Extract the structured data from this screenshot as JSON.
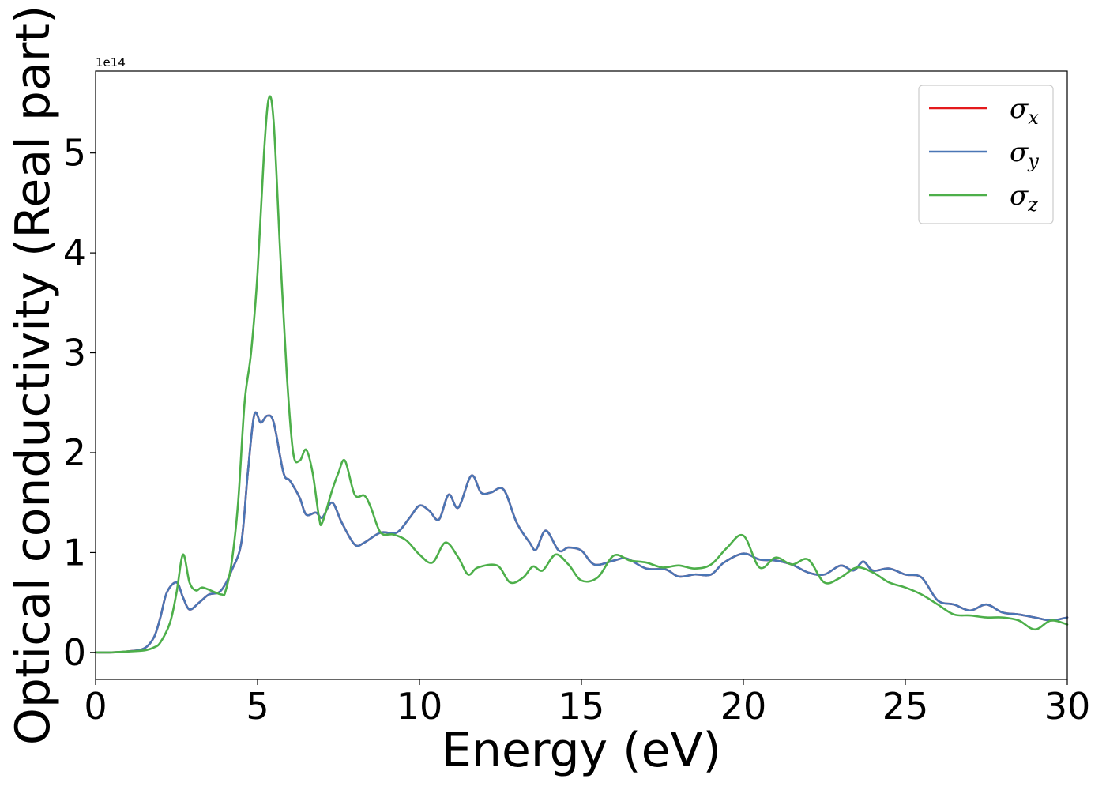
{
  "chart_data": {
    "type": "line",
    "xlabel": "Energy (eV)",
    "ylabel": "Optical conductivity (Real part)",
    "y_offset_text": "1e14",
    "xlim": [
      0,
      30
    ],
    "ylim": [
      -0.27,
      5.82
    ],
    "x_ticks": [
      "0",
      "5",
      "10",
      "15",
      "20",
      "25",
      "30"
    ],
    "y_ticks": [
      "0",
      "1",
      "2",
      "3",
      "4",
      "5"
    ],
    "grid": false,
    "legend_position": "top-right",
    "series": [
      {
        "name": "σ_x",
        "legend_symbol": "σ",
        "legend_subscript": "x",
        "color": "#e41a1c",
        "points": [
          [
            0,
            0
          ],
          [
            0.5,
            0
          ],
          [
            1,
            0.01
          ],
          [
            1.5,
            0.04
          ],
          [
            1.8,
            0.15
          ],
          [
            2,
            0.35
          ],
          [
            2.2,
            0.6
          ],
          [
            2.5,
            0.7
          ],
          [
            2.7,
            0.55
          ],
          [
            2.9,
            0.43
          ],
          [
            3.2,
            0.5
          ],
          [
            3.5,
            0.58
          ],
          [
            3.8,
            0.6
          ],
          [
            4,
            0.68
          ],
          [
            4.2,
            0.82
          ],
          [
            4.5,
            1.1
          ],
          [
            4.7,
            1.8
          ],
          [
            4.9,
            2.38
          ],
          [
            5.1,
            2.3
          ],
          [
            5.3,
            2.37
          ],
          [
            5.5,
            2.3
          ],
          [
            5.8,
            1.8
          ],
          [
            6,
            1.72
          ],
          [
            6.3,
            1.55
          ],
          [
            6.5,
            1.38
          ],
          [
            6.8,
            1.4
          ],
          [
            7,
            1.35
          ],
          [
            7.3,
            1.5
          ],
          [
            7.6,
            1.3
          ],
          [
            8,
            1.08
          ],
          [
            8.3,
            1.1
          ],
          [
            8.8,
            1.2
          ],
          [
            9.3,
            1.2
          ],
          [
            9.7,
            1.35
          ],
          [
            10,
            1.47
          ],
          [
            10.3,
            1.42
          ],
          [
            10.6,
            1.33
          ],
          [
            10.9,
            1.58
          ],
          [
            11.2,
            1.45
          ],
          [
            11.6,
            1.77
          ],
          [
            11.9,
            1.6
          ],
          [
            12.2,
            1.6
          ],
          [
            12.6,
            1.63
          ],
          [
            13,
            1.3
          ],
          [
            13.4,
            1.1
          ],
          [
            13.6,
            1.03
          ],
          [
            13.9,
            1.22
          ],
          [
            14.3,
            1.02
          ],
          [
            14.6,
            1.05
          ],
          [
            15,
            1.02
          ],
          [
            15.4,
            0.88
          ],
          [
            16,
            0.92
          ],
          [
            16.4,
            0.94
          ],
          [
            17,
            0.84
          ],
          [
            17.6,
            0.83
          ],
          [
            18,
            0.76
          ],
          [
            18.5,
            0.78
          ],
          [
            19,
            0.78
          ],
          [
            19.4,
            0.9
          ],
          [
            20,
            0.99
          ],
          [
            20.5,
            0.93
          ],
          [
            21,
            0.92
          ],
          [
            21.5,
            0.88
          ],
          [
            22,
            0.8
          ],
          [
            22.5,
            0.78
          ],
          [
            23,
            0.87
          ],
          [
            23.4,
            0.82
          ],
          [
            23.7,
            0.91
          ],
          [
            24,
            0.82
          ],
          [
            24.5,
            0.84
          ],
          [
            25,
            0.78
          ],
          [
            25.5,
            0.75
          ],
          [
            26,
            0.52
          ],
          [
            26.5,
            0.48
          ],
          [
            27,
            0.42
          ],
          [
            27.5,
            0.48
          ],
          [
            28,
            0.4
          ],
          [
            28.5,
            0.38
          ],
          [
            29,
            0.35
          ],
          [
            29.5,
            0.32
          ],
          [
            30,
            0.35
          ]
        ]
      },
      {
        "name": "σ_y",
        "legend_symbol": "σ",
        "legend_subscript": "y",
        "color": "#4a76b5",
        "points": [
          [
            0,
            0
          ],
          [
            0.5,
            0
          ],
          [
            1,
            0.01
          ],
          [
            1.5,
            0.04
          ],
          [
            1.8,
            0.15
          ],
          [
            2,
            0.35
          ],
          [
            2.2,
            0.6
          ],
          [
            2.5,
            0.7
          ],
          [
            2.7,
            0.55
          ],
          [
            2.9,
            0.43
          ],
          [
            3.2,
            0.5
          ],
          [
            3.5,
            0.58
          ],
          [
            3.8,
            0.6
          ],
          [
            4,
            0.68
          ],
          [
            4.2,
            0.82
          ],
          [
            4.5,
            1.1
          ],
          [
            4.7,
            1.8
          ],
          [
            4.9,
            2.38
          ],
          [
            5.1,
            2.3
          ],
          [
            5.3,
            2.37
          ],
          [
            5.5,
            2.3
          ],
          [
            5.8,
            1.8
          ],
          [
            6,
            1.72
          ],
          [
            6.3,
            1.55
          ],
          [
            6.5,
            1.38
          ],
          [
            6.8,
            1.4
          ],
          [
            7,
            1.35
          ],
          [
            7.3,
            1.5
          ],
          [
            7.6,
            1.3
          ],
          [
            8,
            1.08
          ],
          [
            8.3,
            1.1
          ],
          [
            8.8,
            1.2
          ],
          [
            9.3,
            1.2
          ],
          [
            9.7,
            1.35
          ],
          [
            10,
            1.47
          ],
          [
            10.3,
            1.42
          ],
          [
            10.6,
            1.33
          ],
          [
            10.9,
            1.58
          ],
          [
            11.2,
            1.45
          ],
          [
            11.6,
            1.77
          ],
          [
            11.9,
            1.6
          ],
          [
            12.2,
            1.6
          ],
          [
            12.6,
            1.63
          ],
          [
            13,
            1.3
          ],
          [
            13.4,
            1.1
          ],
          [
            13.6,
            1.03
          ],
          [
            13.9,
            1.22
          ],
          [
            14.3,
            1.02
          ],
          [
            14.6,
            1.05
          ],
          [
            15,
            1.02
          ],
          [
            15.4,
            0.88
          ],
          [
            16,
            0.92
          ],
          [
            16.4,
            0.94
          ],
          [
            17,
            0.84
          ],
          [
            17.6,
            0.83
          ],
          [
            18,
            0.76
          ],
          [
            18.5,
            0.78
          ],
          [
            19,
            0.78
          ],
          [
            19.4,
            0.9
          ],
          [
            20,
            0.99
          ],
          [
            20.5,
            0.93
          ],
          [
            21,
            0.92
          ],
          [
            21.5,
            0.88
          ],
          [
            22,
            0.8
          ],
          [
            22.5,
            0.78
          ],
          [
            23,
            0.87
          ],
          [
            23.4,
            0.82
          ],
          [
            23.7,
            0.91
          ],
          [
            24,
            0.82
          ],
          [
            24.5,
            0.84
          ],
          [
            25,
            0.78
          ],
          [
            25.5,
            0.75
          ],
          [
            26,
            0.52
          ],
          [
            26.5,
            0.48
          ],
          [
            27,
            0.42
          ],
          [
            27.5,
            0.48
          ],
          [
            28,
            0.4
          ],
          [
            28.5,
            0.38
          ],
          [
            29,
            0.35
          ],
          [
            29.5,
            0.32
          ],
          [
            30,
            0.35
          ]
        ]
      },
      {
        "name": "σ_z",
        "legend_symbol": "σ",
        "legend_subscript": "z",
        "color": "#4daf4a",
        "points": [
          [
            0,
            0
          ],
          [
            0.5,
            0
          ],
          [
            1,
            0.01
          ],
          [
            1.5,
            0.02
          ],
          [
            1.8,
            0.05
          ],
          [
            2,
            0.1
          ],
          [
            2.3,
            0.3
          ],
          [
            2.5,
            0.6
          ],
          [
            2.7,
            0.98
          ],
          [
            2.9,
            0.7
          ],
          [
            3.1,
            0.62
          ],
          [
            3.3,
            0.65
          ],
          [
            3.7,
            0.6
          ],
          [
            3.9,
            0.58
          ],
          [
            4,
            0.6
          ],
          [
            4.2,
            0.9
          ],
          [
            4.4,
            1.5
          ],
          [
            4.6,
            2.5
          ],
          [
            4.8,
            3.0
          ],
          [
            5,
            3.8
          ],
          [
            5.2,
            5.0
          ],
          [
            5.35,
            5.55
          ],
          [
            5.5,
            5.3
          ],
          [
            5.7,
            4.0
          ],
          [
            5.9,
            2.8
          ],
          [
            6.1,
            2.0
          ],
          [
            6.3,
            1.92
          ],
          [
            6.5,
            2.03
          ],
          [
            6.7,
            1.8
          ],
          [
            6.9,
            1.35
          ],
          [
            7,
            1.3
          ],
          [
            7.3,
            1.62
          ],
          [
            7.5,
            1.8
          ],
          [
            7.7,
            1.92
          ],
          [
            8,
            1.58
          ],
          [
            8.3,
            1.57
          ],
          [
            8.5,
            1.45
          ],
          [
            8.8,
            1.2
          ],
          [
            9.2,
            1.18
          ],
          [
            9.6,
            1.12
          ],
          [
            10,
            0.98
          ],
          [
            10.4,
            0.9
          ],
          [
            10.8,
            1.1
          ],
          [
            11.2,
            0.95
          ],
          [
            11.5,
            0.78
          ],
          [
            11.8,
            0.85
          ],
          [
            12.4,
            0.87
          ],
          [
            12.8,
            0.7
          ],
          [
            13.2,
            0.75
          ],
          [
            13.5,
            0.86
          ],
          [
            13.8,
            0.82
          ],
          [
            14.2,
            0.98
          ],
          [
            14.6,
            0.88
          ],
          [
            15,
            0.72
          ],
          [
            15.5,
            0.75
          ],
          [
            16,
            0.97
          ],
          [
            16.5,
            0.92
          ],
          [
            17,
            0.9
          ],
          [
            17.5,
            0.85
          ],
          [
            18,
            0.87
          ],
          [
            18.5,
            0.84
          ],
          [
            19,
            0.88
          ],
          [
            19.5,
            1.05
          ],
          [
            20,
            1.17
          ],
          [
            20.5,
            0.85
          ],
          [
            21,
            0.95
          ],
          [
            21.5,
            0.88
          ],
          [
            22,
            0.93
          ],
          [
            22.5,
            0.7
          ],
          [
            23,
            0.75
          ],
          [
            23.5,
            0.85
          ],
          [
            24,
            0.8
          ],
          [
            24.5,
            0.7
          ],
          [
            25,
            0.65
          ],
          [
            25.5,
            0.58
          ],
          [
            26,
            0.48
          ],
          [
            26.5,
            0.38
          ],
          [
            27,
            0.37
          ],
          [
            27.5,
            0.35
          ],
          [
            28,
            0.35
          ],
          [
            28.5,
            0.32
          ],
          [
            29,
            0.23
          ],
          [
            29.5,
            0.32
          ],
          [
            30,
            0.28
          ]
        ]
      }
    ]
  }
}
